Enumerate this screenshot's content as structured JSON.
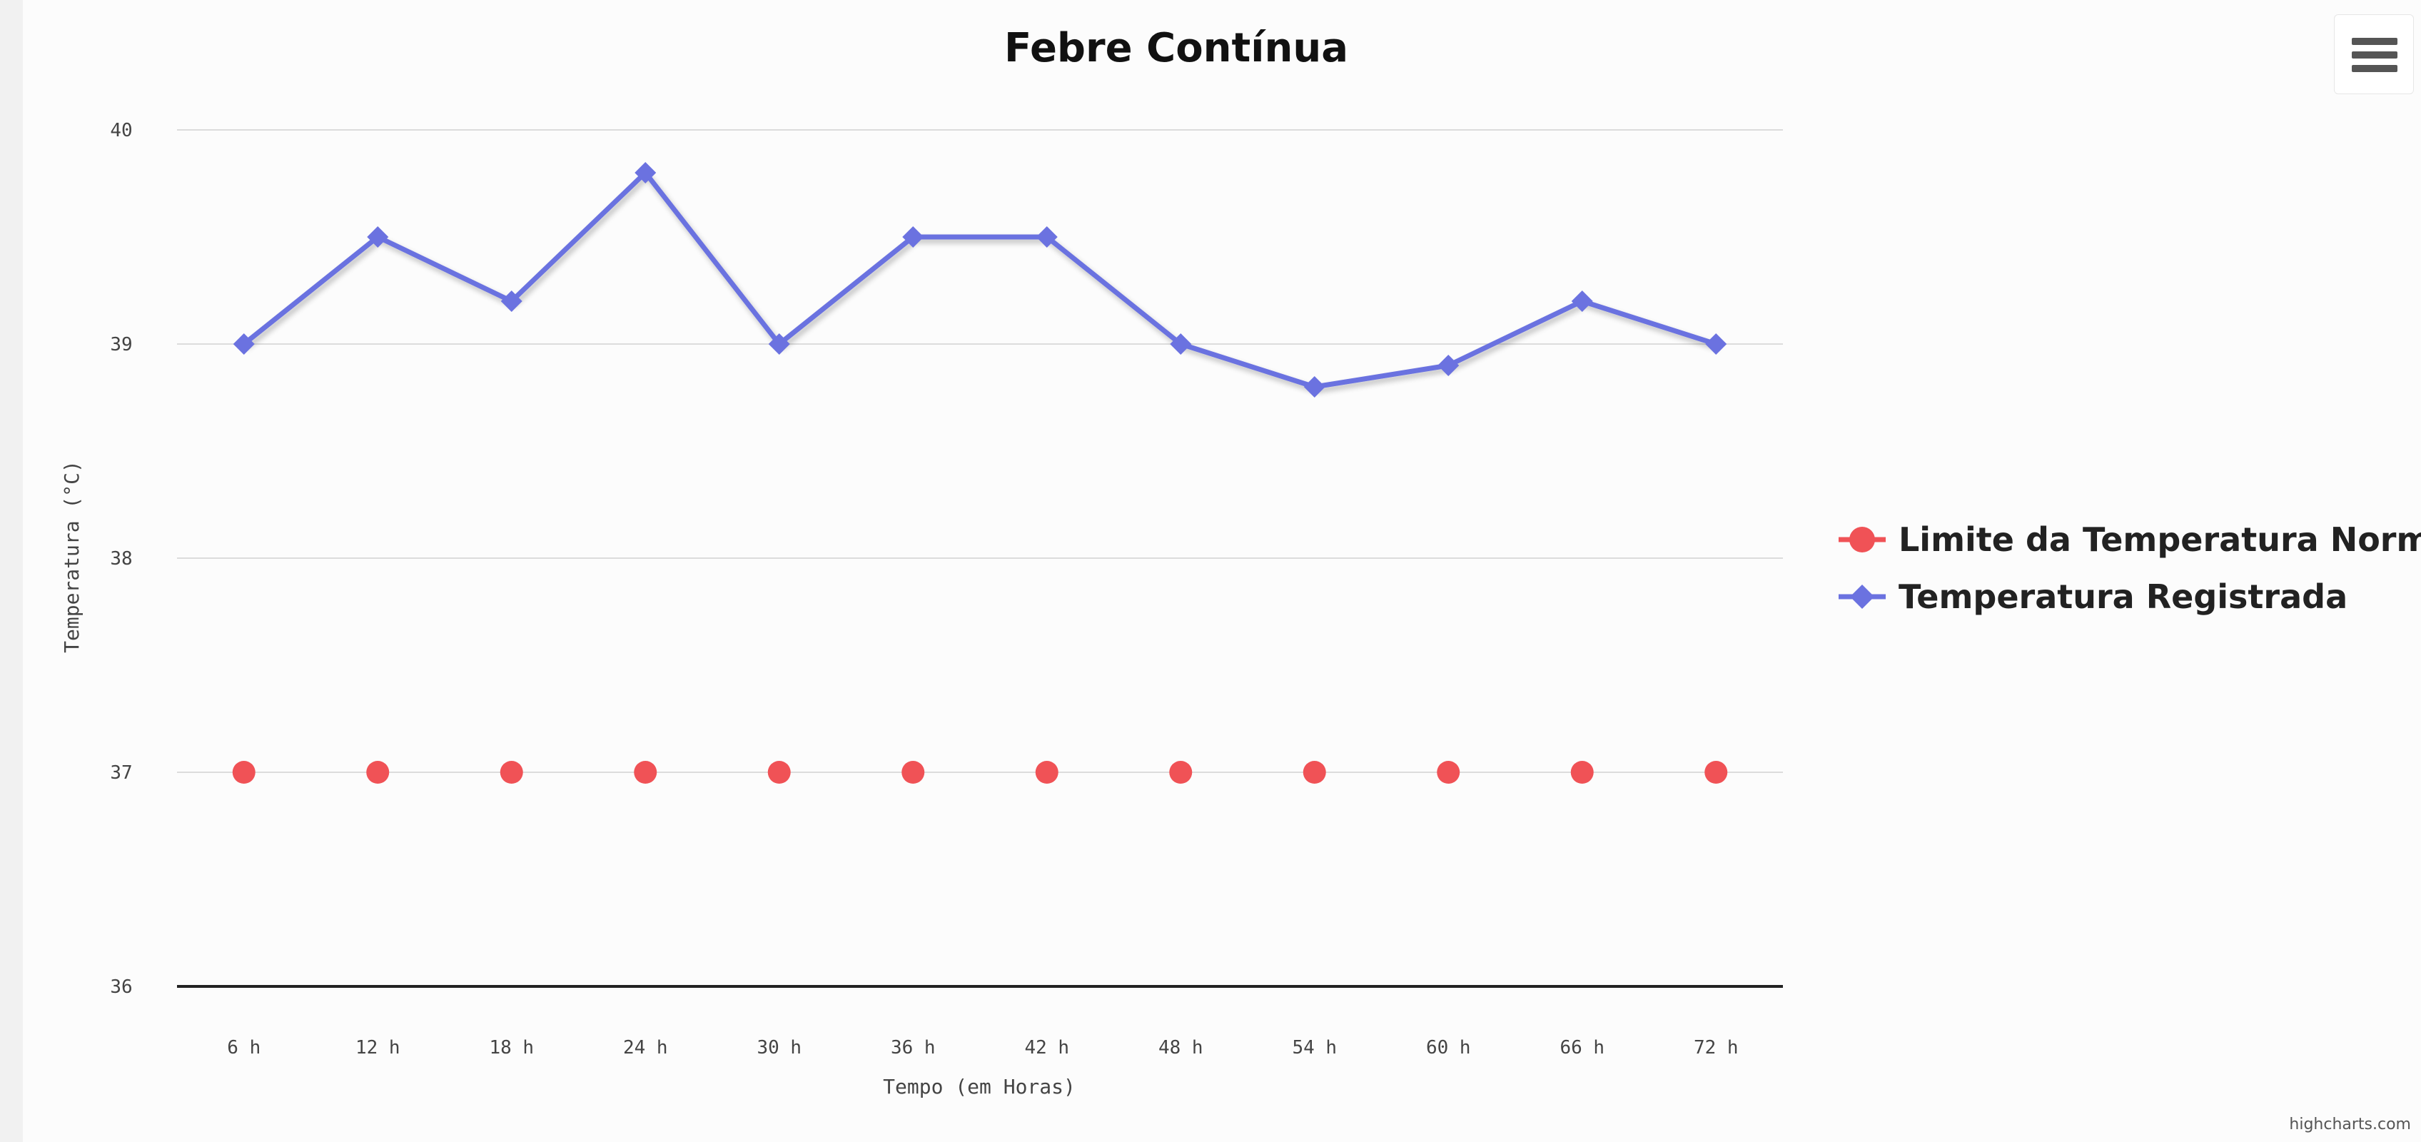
{
  "credit": "highcharts.com",
  "menu": {
    "icon": "hamburger-menu-icon"
  },
  "chart_data": {
    "type": "line",
    "title": "Febre Contínua",
    "xlabel": "Tempo (em Horas)",
    "ylabel": "Temperatura (°C)",
    "ylim": [
      36,
      40
    ],
    "yticks": [
      "36",
      "37",
      "38",
      "39",
      "40"
    ],
    "categories": [
      "6 h",
      "12 h",
      "18 h",
      "24 h",
      "30 h",
      "36 h",
      "42 h",
      "48 h",
      "54 h",
      "60 h",
      "66 h",
      "72 h"
    ],
    "grid": true,
    "legend_position": "right",
    "series": [
      {
        "name": "Limite da Temperatura Normal",
        "color": "#f05256",
        "marker": "circle",
        "values": [
          37,
          37,
          37,
          37,
          37,
          37,
          37,
          37,
          37,
          37,
          37,
          37
        ]
      },
      {
        "name": "Temperatura Registrada",
        "color": "#6b72e0",
        "marker": "diamond",
        "values": [
          39.0,
          39.5,
          39.2,
          39.8,
          39.0,
          39.5,
          39.5,
          39.0,
          38.8,
          38.9,
          39.2,
          39.0
        ]
      }
    ]
  }
}
